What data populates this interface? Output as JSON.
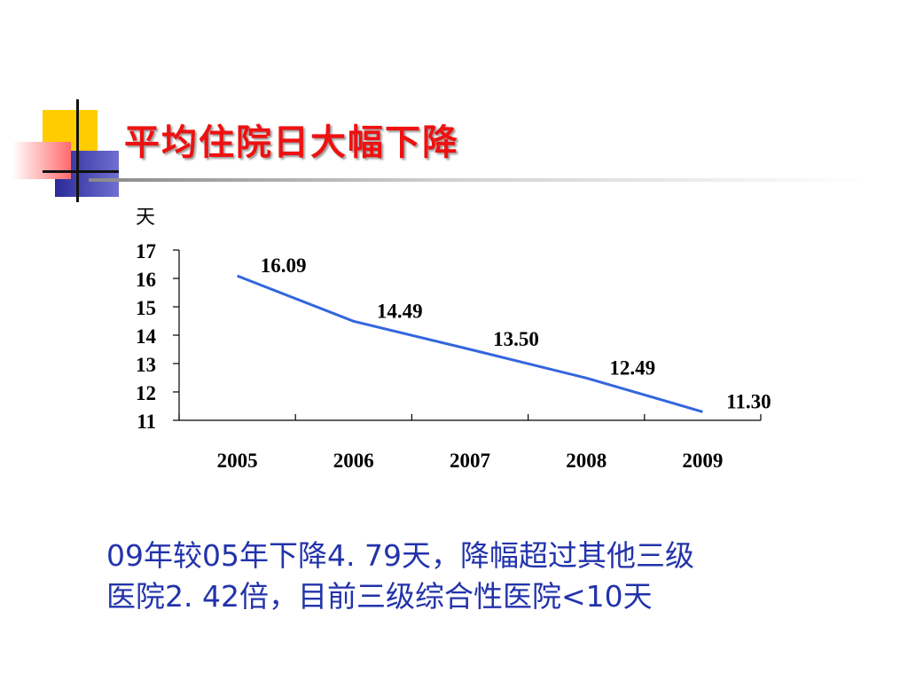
{
  "slide": {
    "title": "平均住院日大幅下降",
    "note_lines": [
      "09年较05年下降4. 79天，降幅超过其他三级",
      "医院2. 42倍，目前三级综合性医院<10天"
    ],
    "colors": {
      "title": "#ee1111",
      "note": "#2233aa",
      "line": "#3366dd"
    }
  },
  "chart_data": {
    "type": "line",
    "title": "",
    "xlabel": "",
    "ylabel": "天",
    "categories": [
      "2005",
      "2006",
      "2007",
      "2008",
      "2009"
    ],
    "series": [
      {
        "values": [
          16.09,
          14.49,
          13.5,
          12.49,
          11.3
        ],
        "labels": [
          "16.09",
          "14.49",
          "13.50",
          "12.49",
          "11.30"
        ]
      }
    ],
    "ylim": [
      11,
      17
    ],
    "yticks": [
      "11",
      "12",
      "13",
      "14",
      "15",
      "16",
      "17"
    ],
    "grid": false,
    "legend": "none"
  }
}
